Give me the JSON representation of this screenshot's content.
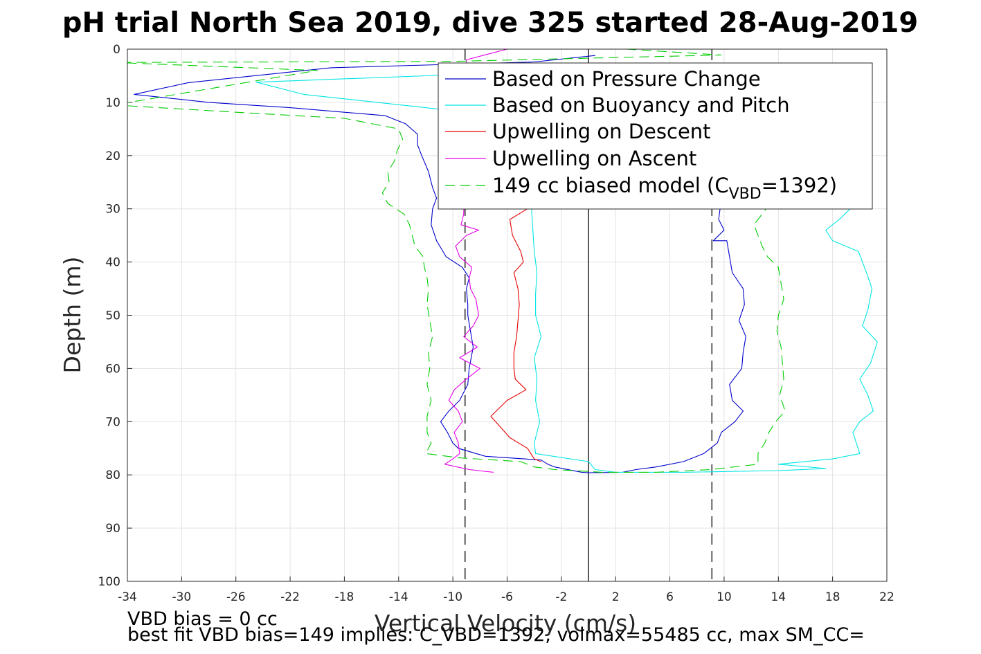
{
  "chart_data": {
    "type": "line",
    "title": "pH trial North Sea 2019, dive 325 started 28-Aug-2019",
    "xlabel": "Vertical Velocity (cm/s)",
    "ylabel": "Depth (m)",
    "xlim": [
      -34,
      22
    ],
    "ylim": [
      0,
      100
    ],
    "y_reversed": true,
    "grid": true,
    "legend_position": "top-right",
    "xticks": [
      -34,
      -30,
      -26,
      -22,
      -18,
      -14,
      -10,
      -6,
      -2,
      2,
      6,
      10,
      14,
      18,
      22
    ],
    "xtick_labels": [
      "-34",
      "-30",
      "-26",
      "-22",
      "-18",
      "-14",
      "-10",
      "-6",
      "-2",
      "2",
      "6",
      "10",
      "14",
      "18",
      "22"
    ],
    "yticks": [
      0,
      10,
      20,
      30,
      40,
      50,
      60,
      70,
      80,
      90,
      100
    ],
    "ytick_labels": [
      "0",
      "10",
      "20",
      "30",
      "40",
      "50",
      "60",
      "70",
      "80",
      "90",
      "100"
    ],
    "series": [
      {
        "name": "Based on Pressure Change",
        "color": "#0000cc",
        "style": "solid",
        "points": [
          [
            0.5,
            1.2
          ],
          [
            -4,
            2.4
          ],
          [
            -19,
            3.5
          ],
          [
            -29.5,
            6.3
          ],
          [
            -33.5,
            8.5
          ],
          [
            -28,
            10
          ],
          [
            -22,
            11
          ],
          [
            -15,
            12.5
          ],
          [
            -13.5,
            14
          ],
          [
            -12.6,
            16
          ],
          [
            -12.6,
            18
          ],
          [
            -12.3,
            20
          ],
          [
            -11.8,
            23
          ],
          [
            -11.5,
            26
          ],
          [
            -11.2,
            28
          ],
          [
            -11.5,
            30
          ],
          [
            -11.6,
            33
          ],
          [
            -11.2,
            36
          ],
          [
            -10.5,
            39
          ],
          [
            -9.3,
            41
          ],
          [
            -8.8,
            43
          ],
          [
            -9,
            45
          ],
          [
            -8.9,
            48
          ],
          [
            -8.9,
            50
          ],
          [
            -8.7,
            53
          ],
          [
            -8.5,
            56
          ],
          [
            -8.8,
            60
          ],
          [
            -8.9,
            63
          ],
          [
            -9.5,
            66
          ],
          [
            -10.3,
            68
          ],
          [
            -10.9,
            70
          ],
          [
            -10.4,
            72
          ],
          [
            -10,
            74
          ],
          [
            -9.6,
            75
          ],
          [
            -7.6,
            76.5
          ],
          [
            -3.5,
            77.2
          ],
          [
            -3,
            78
          ],
          [
            -2.5,
            78.5
          ],
          [
            -0.5,
            79.5
          ],
          [
            0,
            79.6
          ],
          [
            2.5,
            79.5
          ],
          [
            3.5,
            79
          ],
          [
            5,
            78.5
          ],
          [
            7,
            77.5
          ],
          [
            8.5,
            76
          ],
          [
            9.5,
            74
          ],
          [
            9.8,
            72
          ],
          [
            10.8,
            70
          ],
          [
            11.4,
            68
          ],
          [
            10.6,
            66
          ],
          [
            10.4,
            63
          ],
          [
            11.3,
            60
          ],
          [
            11.4,
            57
          ],
          [
            11.6,
            54
          ],
          [
            11.1,
            51
          ],
          [
            11.5,
            48
          ],
          [
            11.4,
            45
          ],
          [
            10.6,
            42
          ],
          [
            10.4,
            39
          ],
          [
            10.2,
            36
          ],
          [
            9.2,
            36
          ],
          [
            10,
            34
          ],
          [
            9.6,
            32
          ],
          [
            9.7,
            30
          ],
          [
            9.1,
            29
          ]
        ]
      },
      {
        "name": "Based on Buoyancy and Pitch",
        "color": "#00e5e5",
        "style": "solid",
        "points": [
          [
            -4,
            2.6
          ],
          [
            -3.5,
            4
          ],
          [
            -12,
            5
          ],
          [
            -24.5,
            6.2
          ],
          [
            -21,
            8.5
          ],
          [
            -12,
            11
          ],
          [
            -7,
            12.5
          ],
          [
            -5.2,
            14
          ],
          [
            -4.6,
            16
          ],
          [
            -4.4,
            18
          ],
          [
            -4.3,
            22
          ],
          [
            -4.2,
            26
          ],
          [
            -4.2,
            30
          ],
          [
            -4.1,
            34
          ],
          [
            -4,
            38
          ],
          [
            -3.8,
            42
          ],
          [
            -3.9,
            46
          ],
          [
            -3.9,
            50
          ],
          [
            -3.5,
            54
          ],
          [
            -4,
            58
          ],
          [
            -3.8,
            62
          ],
          [
            -3.9,
            66
          ],
          [
            -3.6,
            70
          ],
          [
            -4,
            74
          ],
          [
            -3.9,
            76
          ],
          [
            0,
            77.5
          ],
          [
            0.5,
            79
          ],
          [
            2,
            79.5
          ],
          [
            7,
            79.5
          ],
          [
            14,
            79.2
          ],
          [
            17.5,
            78.8
          ],
          [
            14,
            78
          ],
          [
            18,
            77
          ],
          [
            20,
            76
          ],
          [
            19.5,
            72
          ],
          [
            20,
            70
          ],
          [
            21,
            68
          ],
          [
            20.6,
            65
          ],
          [
            20,
            62
          ],
          [
            20.8,
            59
          ],
          [
            21.3,
            55
          ],
          [
            20.2,
            52
          ],
          [
            20.6,
            49
          ],
          [
            20.9,
            45
          ],
          [
            20.5,
            42
          ],
          [
            19.9,
            38
          ],
          [
            18,
            36
          ],
          [
            17.5,
            34
          ],
          [
            18.5,
            32
          ],
          [
            19.3,
            30
          ],
          [
            20,
            28
          ],
          [
            20.6,
            26
          ]
        ]
      },
      {
        "name": "Upwelling on Descent",
        "color": "#e60000",
        "style": "solid",
        "points": [
          [
            -11,
            8.5
          ],
          [
            -9.5,
            9
          ],
          [
            -4.5,
            30
          ],
          [
            -5.8,
            32
          ],
          [
            -5.6,
            35
          ],
          [
            -5,
            38
          ],
          [
            -4.8,
            40
          ],
          [
            -5.5,
            42
          ],
          [
            -5.2,
            45
          ],
          [
            -5.1,
            48
          ],
          [
            -5.2,
            51
          ],
          [
            -5.3,
            54
          ],
          [
            -5.5,
            57
          ],
          [
            -5.5,
            60
          ],
          [
            -5.4,
            62
          ],
          [
            -4.6,
            64
          ],
          [
            -6,
            66
          ],
          [
            -7.2,
            69
          ],
          [
            -6.5,
            71
          ],
          [
            -5.8,
            73
          ],
          [
            -4.5,
            75
          ],
          [
            -4,
            77
          ],
          [
            -3.5,
            77.5
          ]
        ]
      },
      {
        "name": "Upwelling on Ascent",
        "color": "#e600e6",
        "style": "solid",
        "points": [
          [
            -6,
            0
          ],
          [
            -7.5,
            1
          ],
          [
            -9,
            2
          ],
          [
            -9.2,
            31
          ],
          [
            -9.4,
            33
          ],
          [
            -8.1,
            34
          ],
          [
            -9,
            35
          ],
          [
            -9.8,
            37
          ],
          [
            -9.5,
            39
          ],
          [
            -8.6,
            41
          ],
          [
            -8.8,
            43
          ],
          [
            -8.7,
            45
          ],
          [
            -8.3,
            47
          ],
          [
            -8.1,
            50
          ],
          [
            -8.5,
            52
          ],
          [
            -9.2,
            54
          ],
          [
            -8.2,
            56
          ],
          [
            -9.5,
            58
          ],
          [
            -8,
            60
          ],
          [
            -9,
            62
          ],
          [
            -9.9,
            64
          ],
          [
            -10.3,
            66
          ],
          [
            -9.6,
            68
          ],
          [
            -9.3,
            70
          ],
          [
            -9.9,
            72
          ],
          [
            -9.6,
            74
          ],
          [
            -9.5,
            76
          ],
          [
            -10,
            77
          ],
          [
            -10.6,
            78
          ],
          [
            -8.8,
            79
          ],
          [
            -7,
            79.5
          ]
        ]
      },
      {
        "name": "149 cc biased model (C_VBD=1392)",
        "color": "#00cc00",
        "style": "dashed",
        "points": [
          [
            2.8,
            0
          ],
          [
            9.8,
            1.1
          ],
          [
            -10,
            2.3
          ],
          [
            -35,
            2.5
          ],
          [
            -20,
            4
          ],
          [
            -35,
            10.5
          ],
          [
            -25,
            12
          ],
          [
            -18,
            13
          ],
          [
            -14,
            15
          ],
          [
            -13.7,
            17
          ],
          [
            -14.1,
            19
          ],
          [
            -14.3,
            21
          ],
          [
            -14.8,
            23
          ],
          [
            -14.7,
            25
          ],
          [
            -15.2,
            27
          ],
          [
            -14.8,
            29
          ],
          [
            -13.6,
            31
          ],
          [
            -13.2,
            33
          ],
          [
            -13,
            35
          ],
          [
            -12.8,
            37
          ],
          [
            -12.2,
            39
          ],
          [
            -12.1,
            41
          ],
          [
            -11.9,
            43
          ],
          [
            -11.8,
            45
          ],
          [
            -11.9,
            48
          ],
          [
            -11.7,
            51
          ],
          [
            -11.5,
            54
          ],
          [
            -11.8,
            57
          ],
          [
            -11.7,
            60
          ],
          [
            -11.9,
            63
          ],
          [
            -11.6,
            66
          ],
          [
            -11.9,
            69
          ],
          [
            -11.9,
            72
          ],
          [
            -11.6,
            74
          ],
          [
            -12,
            76
          ],
          [
            -9.5,
            76.8
          ],
          [
            -5,
            77.5
          ],
          [
            -4,
            78.5
          ],
          [
            -2.5,
            79
          ],
          [
            1,
            79.5
          ],
          [
            5,
            79.5
          ],
          [
            9,
            79
          ],
          [
            12.5,
            78
          ],
          [
            12.5,
            76
          ],
          [
            13,
            74
          ],
          [
            13.3,
            72
          ],
          [
            13.8,
            70
          ],
          [
            14.5,
            68
          ],
          [
            14.1,
            65
          ],
          [
            14.4,
            62
          ],
          [
            14.3,
            59
          ],
          [
            14.2,
            56
          ],
          [
            13.9,
            53
          ],
          [
            14,
            50
          ],
          [
            14.4,
            47
          ],
          [
            14.2,
            44
          ],
          [
            14,
            41
          ],
          [
            13.2,
            39
          ],
          [
            12.8,
            37
          ],
          [
            12.5,
            35
          ],
          [
            12.2,
            33
          ],
          [
            12.8,
            31
          ],
          [
            13.4,
            29
          ]
        ]
      }
    ],
    "vertical_lines": [
      {
        "x": -9.1,
        "style": "dashed",
        "color": "#000000"
      },
      {
        "x": 0,
        "style": "solid",
        "color": "#000000"
      },
      {
        "x": 9.1,
        "style": "dashed",
        "color": "#000000"
      }
    ],
    "legend": {
      "entries": [
        "Based on Pressure Change",
        "Based on Buoyancy and Pitch",
        "Upwelling on Descent",
        "Upwelling on Ascent",
        "149 cc biased model (C",
        "=1392)"
      ],
      "subscript": "VBD"
    },
    "annotations": [
      "VBD bias = 0 cc",
      "best fit VBD bias=149 implies: C_VBD=1392, volmax=55485 cc, max SM_CC="
    ]
  }
}
